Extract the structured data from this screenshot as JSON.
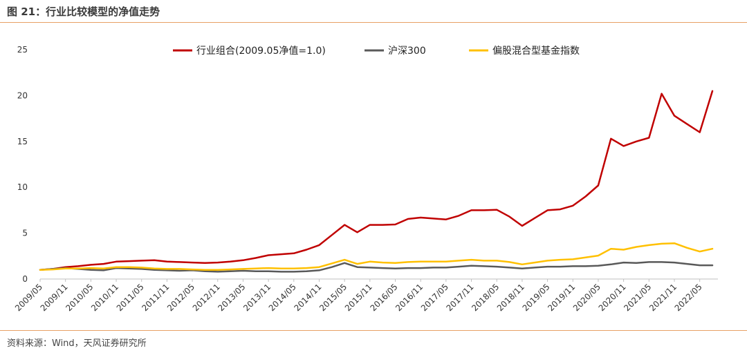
{
  "header": {
    "title": "图 21：行业比较模型的净值走势"
  },
  "footer": {
    "source": "资料来源：Wind，天风证券研究所"
  },
  "chart_data": {
    "type": "line",
    "title": "",
    "xlabel": "",
    "ylabel": "",
    "ylim": [
      0,
      25
    ],
    "yticks": [
      0,
      5,
      10,
      15,
      20,
      25
    ],
    "xtick_labels": [
      "2009/05",
      "2009/11",
      "2010/05",
      "2010/11",
      "2011/05",
      "2011/11",
      "2012/05",
      "2012/11",
      "2013/05",
      "2013/11",
      "2014/05",
      "2014/11",
      "2015/05",
      "2015/11",
      "2016/05",
      "2016/11",
      "2017/05",
      "2017/11",
      "2018/05",
      "2018/11",
      "2019/05",
      "2019/11",
      "2020/05",
      "2020/11",
      "2021/05",
      "2021/11",
      "2022/05"
    ],
    "grid": false,
    "legend_position": "top",
    "series": [
      {
        "name": "行业组合(2009.05净值=1.0)",
        "color": "#c00000",
        "x": [
          "2009/05",
          "2009/08",
          "2009/11",
          "2010/02",
          "2010/05",
          "2010/08",
          "2010/11",
          "2011/02",
          "2011/05",
          "2011/08",
          "2011/11",
          "2012/02",
          "2012/05",
          "2012/08",
          "2012/11",
          "2013/02",
          "2013/05",
          "2013/08",
          "2013/11",
          "2014/02",
          "2014/05",
          "2014/08",
          "2014/11",
          "2015/02",
          "2015/05",
          "2015/08",
          "2015/11",
          "2016/02",
          "2016/05",
          "2016/08",
          "2016/11",
          "2017/02",
          "2017/05",
          "2017/08",
          "2017/11",
          "2018/02",
          "2018/05",
          "2018/08",
          "2018/11",
          "2019/02",
          "2019/05",
          "2019/08",
          "2019/11",
          "2020/02",
          "2020/05",
          "2020/08",
          "2020/11",
          "2021/02",
          "2021/05",
          "2021/08",
          "2021/11",
          "2022/02",
          "2022/05",
          "2022/08"
        ],
        "values": [
          1.0,
          1.1,
          1.3,
          1.4,
          1.55,
          1.65,
          1.9,
          1.95,
          2.0,
          2.05,
          1.9,
          1.85,
          1.8,
          1.75,
          1.8,
          1.9,
          2.05,
          2.3,
          2.6,
          2.7,
          2.8,
          3.2,
          3.7,
          4.8,
          5.9,
          5.1,
          5.9,
          5.9,
          5.95,
          6.55,
          6.7,
          6.6,
          6.5,
          6.9,
          7.5,
          7.5,
          7.55,
          6.8,
          5.8,
          6.65,
          7.5,
          7.6,
          8.0,
          9.0,
          10.2,
          15.3,
          14.5,
          15.0,
          15.4,
          20.2,
          17.8,
          16.9,
          16.0,
          20.5
        ]
      },
      {
        "name": "沪深300",
        "color": "#595959",
        "x": [
          "2009/05",
          "2009/08",
          "2009/11",
          "2010/02",
          "2010/05",
          "2010/08",
          "2010/11",
          "2011/02",
          "2011/05",
          "2011/08",
          "2011/11",
          "2012/02",
          "2012/05",
          "2012/08",
          "2012/11",
          "2013/02",
          "2013/05",
          "2013/08",
          "2013/11",
          "2014/02",
          "2014/05",
          "2014/08",
          "2014/11",
          "2015/02",
          "2015/05",
          "2015/08",
          "2015/11",
          "2016/02",
          "2016/05",
          "2016/08",
          "2016/11",
          "2017/02",
          "2017/05",
          "2017/08",
          "2017/11",
          "2018/02",
          "2018/05",
          "2018/08",
          "2018/11",
          "2019/02",
          "2019/05",
          "2019/08",
          "2019/11",
          "2020/02",
          "2020/05",
          "2020/08",
          "2020/11",
          "2021/02",
          "2021/05",
          "2021/08",
          "2021/11",
          "2022/02",
          "2022/05",
          "2022/08"
        ],
        "values": [
          1.0,
          1.1,
          1.2,
          1.1,
          1.0,
          0.95,
          1.2,
          1.15,
          1.1,
          1.0,
          0.95,
          0.9,
          0.95,
          0.85,
          0.8,
          0.85,
          0.9,
          0.85,
          0.85,
          0.8,
          0.8,
          0.85,
          0.95,
          1.3,
          1.75,
          1.3,
          1.25,
          1.2,
          1.15,
          1.2,
          1.2,
          1.25,
          1.25,
          1.35,
          1.45,
          1.4,
          1.35,
          1.25,
          1.15,
          1.25,
          1.35,
          1.35,
          1.4,
          1.4,
          1.45,
          1.6,
          1.8,
          1.75,
          1.85,
          1.85,
          1.8,
          1.65,
          1.5,
          1.5
        ]
      },
      {
        "name": "偏股混合型基金指数",
        "color": "#ffc000",
        "x": [
          "2009/05",
          "2009/08",
          "2009/11",
          "2010/02",
          "2010/05",
          "2010/08",
          "2010/11",
          "2011/02",
          "2011/05",
          "2011/08",
          "2011/11",
          "2012/02",
          "2012/05",
          "2012/08",
          "2012/11",
          "2013/02",
          "2013/05",
          "2013/08",
          "2013/11",
          "2014/02",
          "2014/05",
          "2014/08",
          "2014/11",
          "2015/02",
          "2015/05",
          "2015/08",
          "2015/11",
          "2016/02",
          "2016/05",
          "2016/08",
          "2016/11",
          "2017/02",
          "2017/05",
          "2017/08",
          "2017/11",
          "2018/02",
          "2018/05",
          "2018/08",
          "2018/11",
          "2019/02",
          "2019/05",
          "2019/08",
          "2019/11",
          "2020/02",
          "2020/05",
          "2020/08",
          "2020/11",
          "2021/02",
          "2021/05",
          "2021/08",
          "2021/11",
          "2022/02",
          "2022/05",
          "2022/08"
        ],
        "values": [
          1.0,
          1.05,
          1.15,
          1.15,
          1.2,
          1.15,
          1.3,
          1.3,
          1.25,
          1.15,
          1.1,
          1.1,
          1.05,
          1.0,
          1.0,
          1.05,
          1.1,
          1.15,
          1.2,
          1.15,
          1.15,
          1.2,
          1.3,
          1.7,
          2.1,
          1.65,
          1.9,
          1.8,
          1.75,
          1.85,
          1.9,
          1.9,
          1.9,
          2.0,
          2.1,
          2.0,
          2.0,
          1.85,
          1.6,
          1.8,
          2.0,
          2.1,
          2.15,
          2.35,
          2.55,
          3.3,
          3.2,
          3.5,
          3.7,
          3.85,
          3.9,
          3.4,
          3.0,
          3.3
        ]
      }
    ]
  }
}
